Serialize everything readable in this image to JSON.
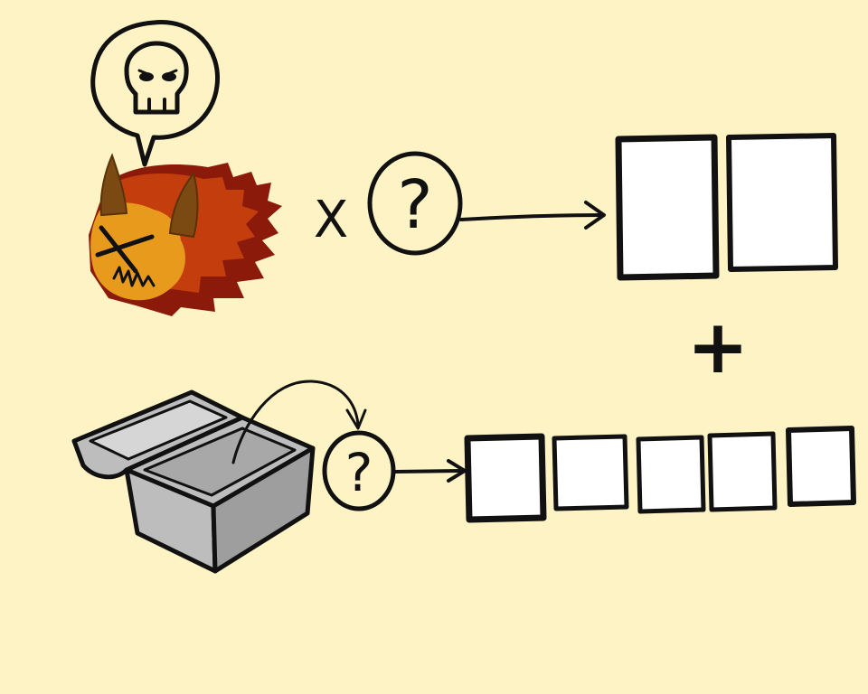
{
  "colors": {
    "background": "#fdf3c4",
    "ink": "#111111",
    "card": "#ffffff",
    "monster_dark": "#8b1a0a",
    "monster_mid": "#c43d0c",
    "monster_light": "#e89a1c",
    "horn": "#7a4a12",
    "chest_body": "#bdbdbd",
    "chest_shade": "#9e9e9e"
  },
  "icons": {
    "monster": "horned-fire-monster-icon",
    "speech": "speech-bubble-icon",
    "skull": "skull-icon",
    "chest": "open-treasure-chest-icon"
  },
  "symbols": {
    "times": "X",
    "question_top": "?",
    "question_bottom": "?",
    "plus": "+"
  },
  "counts": {
    "top_cards": 2,
    "bottom_cards": 5
  }
}
